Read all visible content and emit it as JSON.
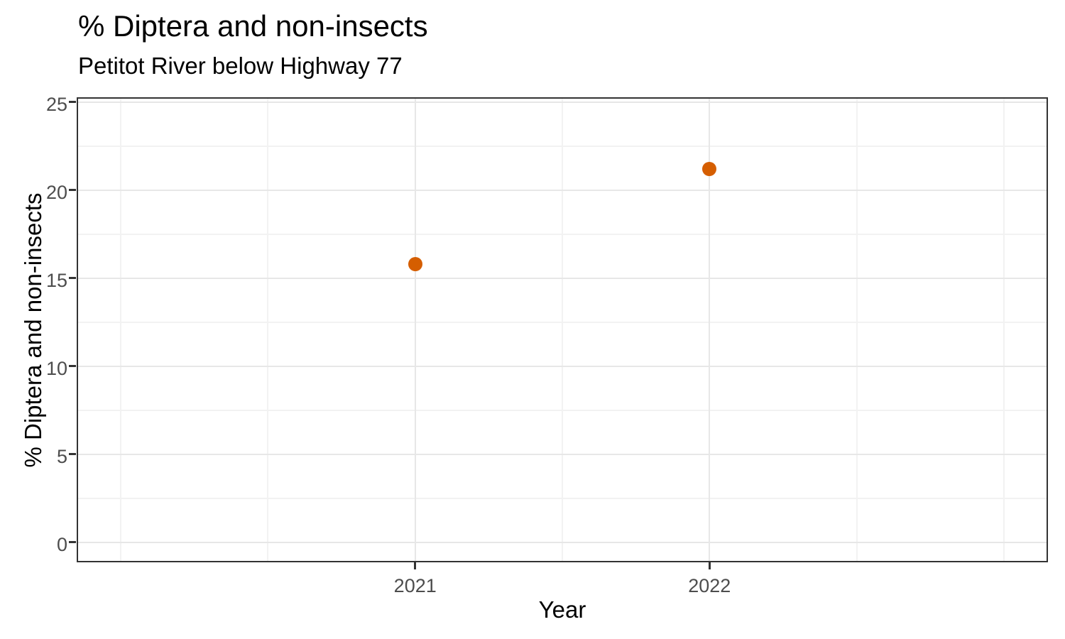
{
  "chart_data": {
    "type": "scatter",
    "title": "% Diptera and non-insects",
    "subtitle": "Petitot River below Highway 77",
    "xlabel": "Year",
    "ylabel": "% Diptera and non-insects",
    "points": [
      {
        "x": 2021,
        "y": 15.8
      },
      {
        "x": 2022,
        "y": 21.2
      }
    ],
    "x_tick_labels": [
      "2021",
      "2022"
    ],
    "x_major_breaks": [
      2021,
      2022
    ],
    "x_minor_breaks": [
      2020,
      2020.5,
      2021.5,
      2022.5,
      2023
    ],
    "y_tick_labels": [
      "0",
      "5",
      "10",
      "15",
      "20",
      "25"
    ],
    "y_major_breaks": [
      0,
      5,
      10,
      15,
      20,
      25
    ],
    "y_minor_breaks": [
      2.5,
      7.5,
      12.5,
      17.5,
      22.5
    ],
    "xlim": [
      2019.85,
      2023.15
    ],
    "ylim": [
      0,
      25
    ],
    "legend_position": "none",
    "grid": "major-and-minor",
    "colors": {
      "point": "#D55E00",
      "grid_major": "#e7e7e7",
      "grid_minor": "#f2f2f2",
      "panel_border": "#333333",
      "tick_mark": "#333333",
      "axis_text": "#4d4d4d",
      "title_text": "#000000",
      "background": "#ffffff"
    }
  }
}
